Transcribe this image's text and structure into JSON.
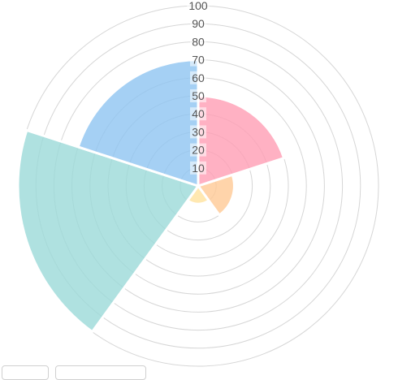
{
  "chart_data": {
    "type": "polarArea",
    "title": "",
    "r_ticks": [
      10,
      20,
      30,
      40,
      50,
      60,
      70,
      80,
      90,
      100
    ],
    "r_range": [
      0,
      100
    ],
    "grid": true,
    "start_angle_deg": 0,
    "direction": "clockwise",
    "values": [
      50,
      20,
      10,
      100,
      70
    ],
    "colors": [
      "#ff9db4",
      "#ffc995",
      "#ffe29e",
      "#9bd9d8",
      "#8ec4f1"
    ]
  }
}
